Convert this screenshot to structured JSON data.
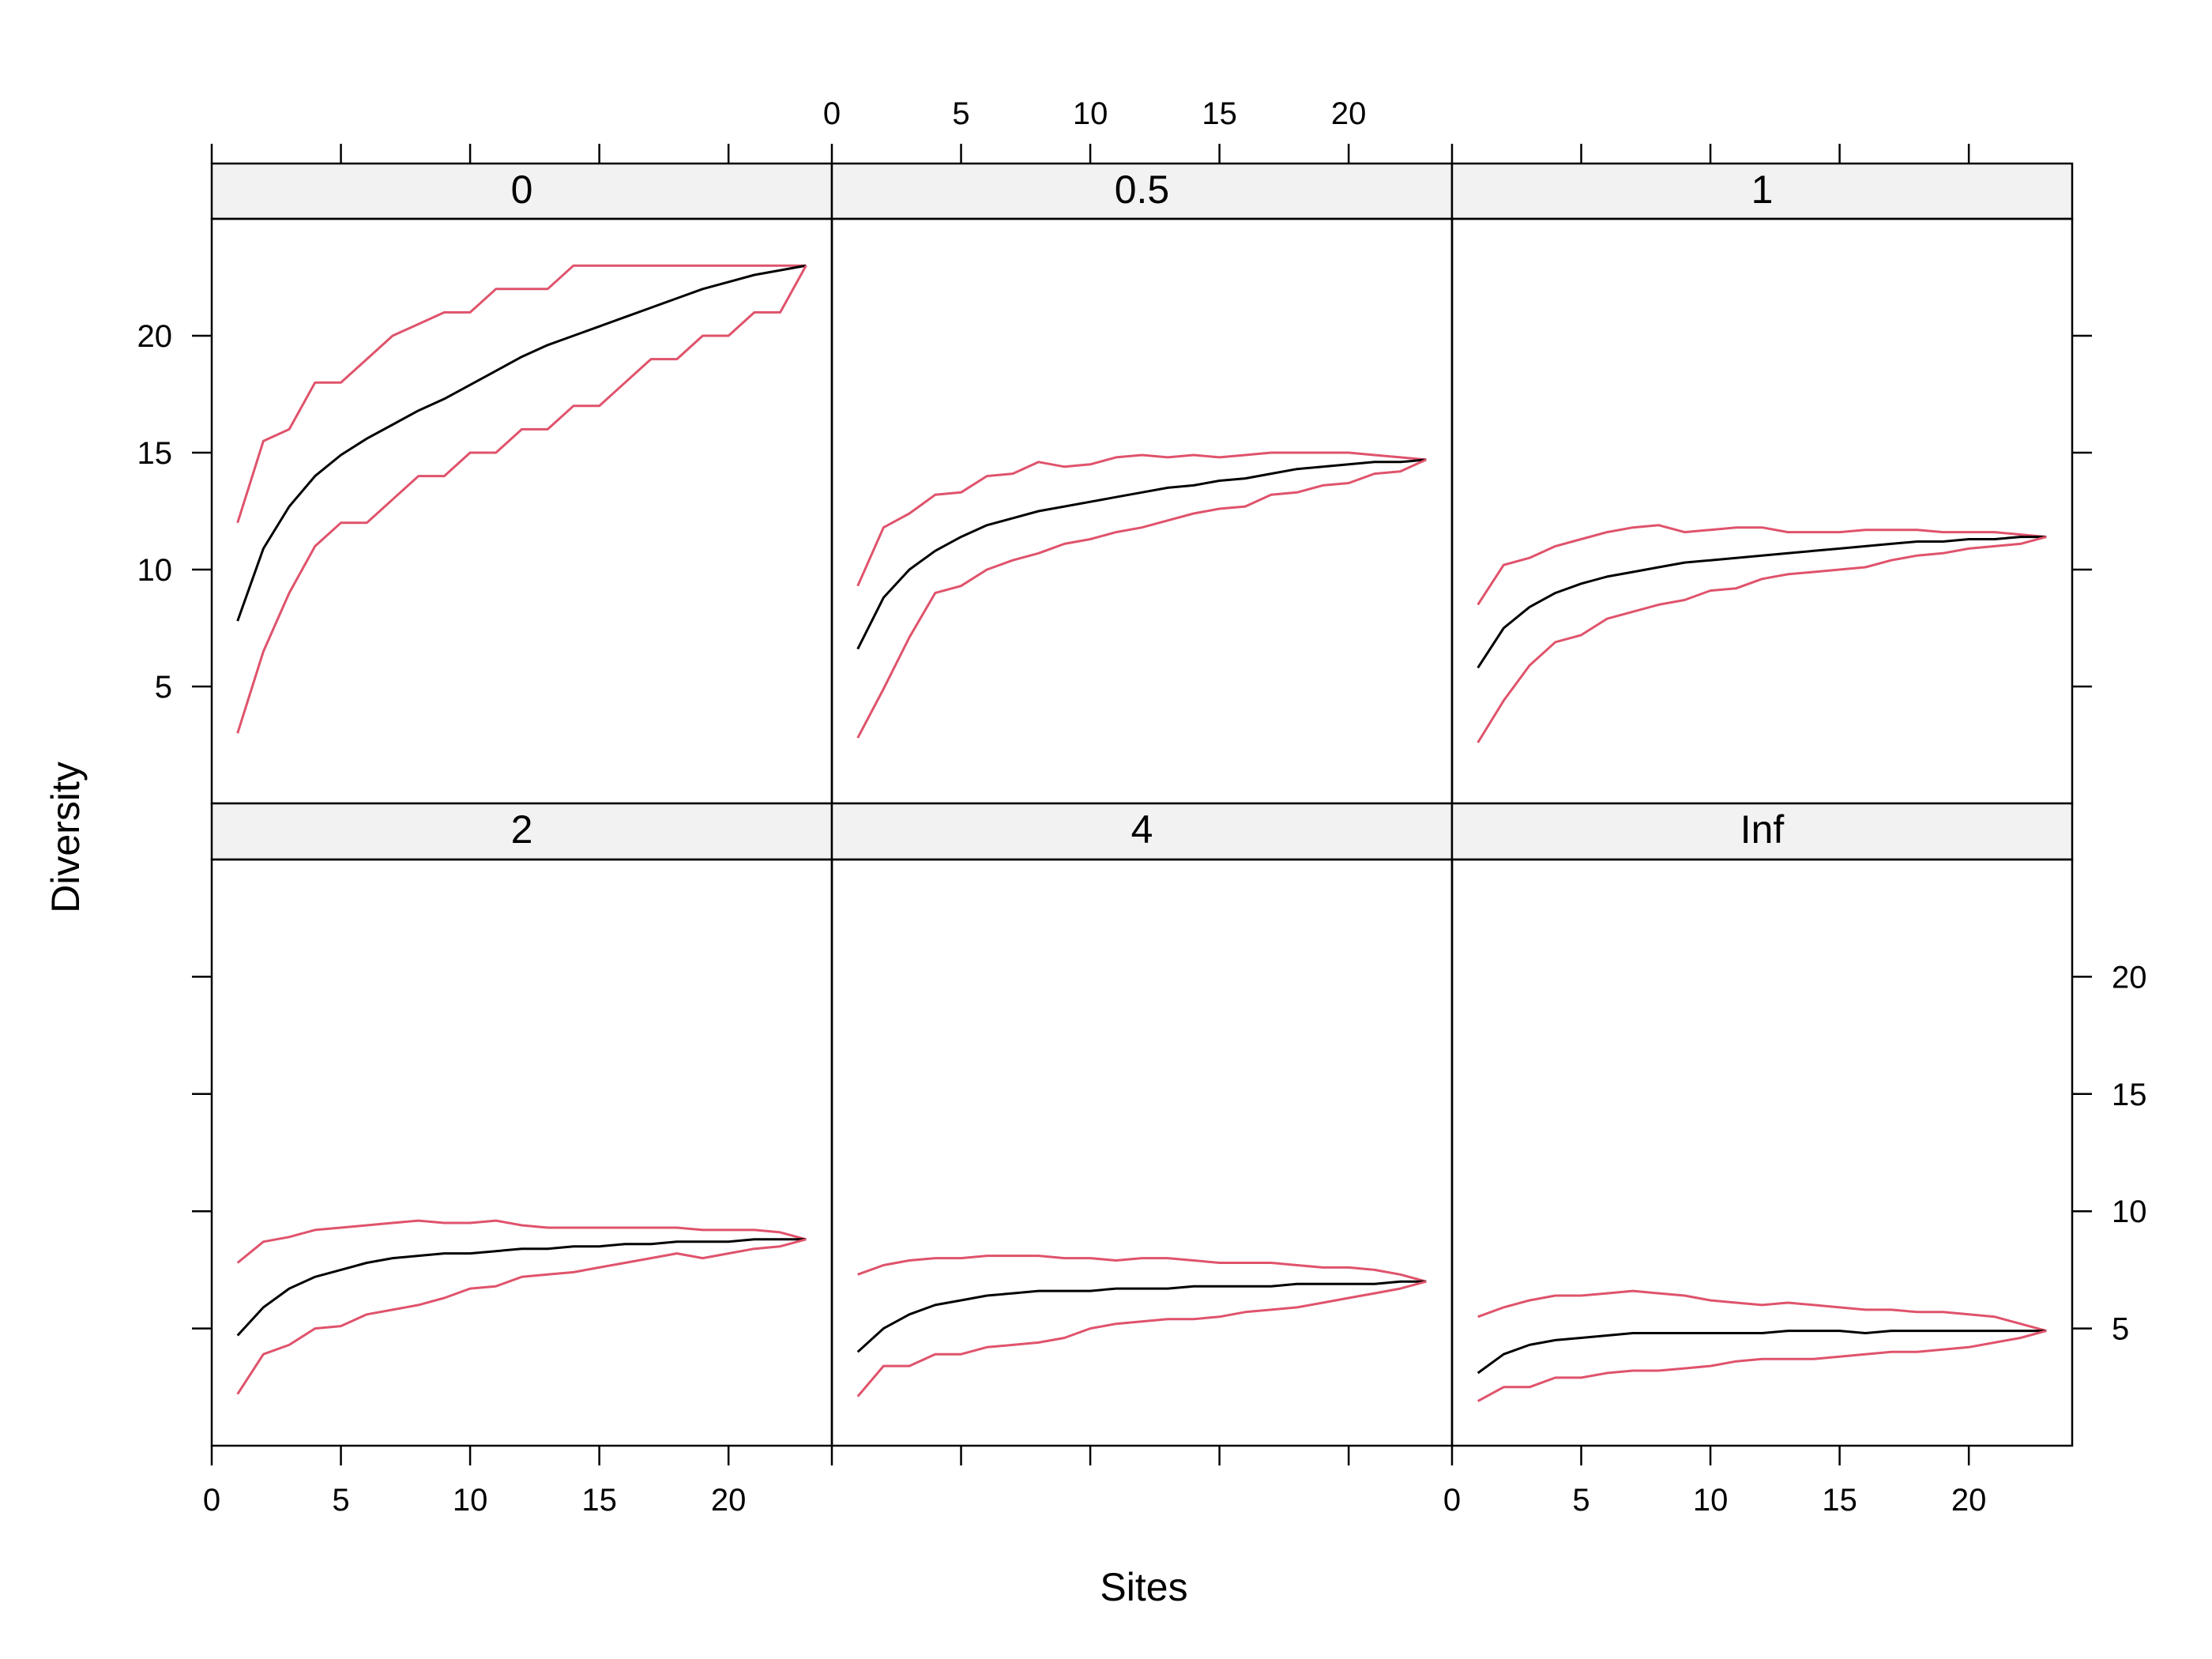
{
  "chart_data": {
    "type": "line",
    "xlabel": "Sites",
    "ylabel": "Diversity",
    "xlim": [
      0,
      24
    ],
    "ylim": [
      0,
      25
    ],
    "xticks": [
      0,
      5,
      10,
      15,
      20
    ],
    "yticks": [
      5,
      10,
      15,
      20
    ],
    "colors": {
      "median": "#000000",
      "bounds": "#DF536B"
    },
    "panels": [
      {
        "label": "0",
        "x": [
          1,
          2,
          3,
          4,
          5,
          6,
          7,
          8,
          9,
          10,
          11,
          12,
          13,
          14,
          15,
          16,
          17,
          18,
          19,
          20,
          21,
          22,
          23
        ],
        "series": [
          {
            "values": [
              12,
              15.5,
              16,
              18,
              18,
              19,
              20,
              20.5,
              21,
              21,
              22,
              22,
              22,
              23,
              23,
              23,
              23,
              23,
              23,
              23,
              23,
              23,
              23
            ]
          },
          {
            "values": [
              7.8,
              10.9,
              12.7,
              14,
              14.9,
              15.6,
              16.2,
              16.8,
              17.3,
              17.9,
              18.5,
              19.1,
              19.6,
              20,
              20.4,
              20.8,
              21.2,
              21.6,
              22,
              22.3,
              22.6,
              22.8,
              23
            ]
          },
          {
            "values": [
              3,
              6.5,
              9,
              11,
              12,
              12,
              13,
              14,
              14,
              15,
              15,
              16,
              16,
              17,
              17,
              18,
              19,
              19,
              20,
              20,
              21,
              21,
              23
            ]
          }
        ]
      },
      {
        "label": "0.5",
        "x": [
          1,
          2,
          3,
          4,
          5,
          6,
          7,
          8,
          9,
          10,
          11,
          12,
          13,
          14,
          15,
          16,
          17,
          18,
          19,
          20,
          21,
          22,
          23
        ],
        "series": [
          {
            "values": [
              9.3,
              11.8,
              12.4,
              13.2,
              13.3,
              14,
              14.1,
              14.6,
              14.4,
              14.5,
              14.8,
              14.9,
              14.8,
              14.9,
              14.8,
              14.9,
              15,
              15,
              15,
              15,
              14.9,
              14.8,
              14.7
            ]
          },
          {
            "values": [
              6.6,
              8.8,
              10,
              10.8,
              11.4,
              11.9,
              12.2,
              12.5,
              12.7,
              12.9,
              13.1,
              13.3,
              13.5,
              13.6,
              13.8,
              13.9,
              14.1,
              14.3,
              14.4,
              14.5,
              14.6,
              14.6,
              14.7
            ]
          },
          {
            "values": [
              2.8,
              4.9,
              7.1,
              9,
              9.3,
              10,
              10.4,
              10.7,
              11.1,
              11.3,
              11.6,
              11.8,
              12.1,
              12.4,
              12.6,
              12.7,
              13.2,
              13.3,
              13.6,
              13.7,
              14.1,
              14.2,
              14.7
            ]
          }
        ]
      },
      {
        "label": "1",
        "x": [
          1,
          2,
          3,
          4,
          5,
          6,
          7,
          8,
          9,
          10,
          11,
          12,
          13,
          14,
          15,
          16,
          17,
          18,
          19,
          20,
          21,
          22,
          23
        ],
        "series": [
          {
            "values": [
              8.5,
              10.2,
              10.5,
              11,
              11.3,
              11.6,
              11.8,
              11.9,
              11.6,
              11.7,
              11.8,
              11.8,
              11.6,
              11.6,
              11.6,
              11.7,
              11.7,
              11.7,
              11.6,
              11.6,
              11.6,
              11.5,
              11.4
            ]
          },
          {
            "values": [
              5.8,
              7.5,
              8.4,
              9,
              9.4,
              9.7,
              9.9,
              10.1,
              10.3,
              10.4,
              10.5,
              10.6,
              10.7,
              10.8,
              10.9,
              11,
              11.1,
              11.2,
              11.2,
              11.3,
              11.3,
              11.4,
              11.4
            ]
          },
          {
            "values": [
              2.6,
              4.4,
              5.9,
              6.9,
              7.2,
              7.9,
              8.2,
              8.5,
              8.7,
              9.1,
              9.2,
              9.6,
              9.8,
              9.9,
              10,
              10.1,
              10.4,
              10.6,
              10.7,
              10.9,
              11,
              11.1,
              11.4
            ]
          }
        ]
      },
      {
        "label": "2",
        "x": [
          1,
          2,
          3,
          4,
          5,
          6,
          7,
          8,
          9,
          10,
          11,
          12,
          13,
          14,
          15,
          16,
          17,
          18,
          19,
          20,
          21,
          22,
          23
        ],
        "series": [
          {
            "values": [
              7.8,
              8.7,
              8.9,
              9.2,
              9.3,
              9.4,
              9.5,
              9.6,
              9.5,
              9.5,
              9.6,
              9.4,
              9.3,
              9.3,
              9.3,
              9.3,
              9.3,
              9.3,
              9.2,
              9.2,
              9.2,
              9.1,
              8.8
            ]
          },
          {
            "values": [
              4.7,
              5.9,
              6.7,
              7.2,
              7.5,
              7.8,
              8,
              8.1,
              8.2,
              8.2,
              8.3,
              8.4,
              8.4,
              8.5,
              8.5,
              8.6,
              8.6,
              8.7,
              8.7,
              8.7,
              8.8,
              8.8,
              8.8
            ]
          },
          {
            "values": [
              2.2,
              3.9,
              4.3,
              5,
              5.1,
              5.6,
              5.8,
              6,
              6.3,
              6.7,
              6.8,
              7.2,
              7.3,
              7.4,
              7.6,
              7.8,
              8,
              8.2,
              8,
              8.2,
              8.4,
              8.5,
              8.8
            ]
          }
        ]
      },
      {
        "label": "4",
        "x": [
          1,
          2,
          3,
          4,
          5,
          6,
          7,
          8,
          9,
          10,
          11,
          12,
          13,
          14,
          15,
          16,
          17,
          18,
          19,
          20,
          21,
          22,
          23
        ],
        "series": [
          {
            "values": [
              7.3,
              7.7,
              7.9,
              8,
              8,
              8.1,
              8.1,
              8.1,
              8,
              8,
              7.9,
              8,
              8,
              7.9,
              7.8,
              7.8,
              7.8,
              7.7,
              7.6,
              7.6,
              7.5,
              7.3,
              7
            ]
          },
          {
            "values": [
              4,
              5,
              5.6,
              6,
              6.2,
              6.4,
              6.5,
              6.6,
              6.6,
              6.6,
              6.7,
              6.7,
              6.7,
              6.8,
              6.8,
              6.8,
              6.8,
              6.9,
              6.9,
              6.9,
              6.9,
              7,
              7
            ]
          },
          {
            "values": [
              2.1,
              3.4,
              3.4,
              3.9,
              3.9,
              4.2,
              4.3,
              4.4,
              4.6,
              5,
              5.2,
              5.3,
              5.4,
              5.4,
              5.5,
              5.7,
              5.8,
              5.9,
              6.1,
              6.3,
              6.5,
              6.7,
              7
            ]
          }
        ]
      },
      {
        "label": "Inf",
        "x": [
          1,
          2,
          3,
          4,
          5,
          6,
          7,
          8,
          9,
          10,
          11,
          12,
          13,
          14,
          15,
          16,
          17,
          18,
          19,
          20,
          21,
          22,
          23
        ],
        "series": [
          {
            "values": [
              5.5,
              5.9,
              6.2,
              6.4,
              6.4,
              6.5,
              6.6,
              6.5,
              6.4,
              6.2,
              6.1,
              6,
              6.1,
              6,
              5.9,
              5.8,
              5.8,
              5.7,
              5.7,
              5.6,
              5.5,
              5.2,
              4.9
            ]
          },
          {
            "values": [
              3.1,
              3.9,
              4.3,
              4.5,
              4.6,
              4.7,
              4.8,
              4.8,
              4.8,
              4.8,
              4.8,
              4.8,
              4.9,
              4.9,
              4.9,
              4.8,
              4.9,
              4.9,
              4.9,
              4.9,
              4.9,
              4.9,
              4.9
            ]
          },
          {
            "values": [
              1.9,
              2.5,
              2.5,
              2.9,
              2.9,
              3.1,
              3.2,
              3.2,
              3.3,
              3.4,
              3.6,
              3.7,
              3.7,
              3.7,
              3.8,
              3.9,
              4,
              4,
              4.1,
              4.2,
              4.4,
              4.6,
              4.9
            ]
          }
        ]
      }
    ]
  }
}
